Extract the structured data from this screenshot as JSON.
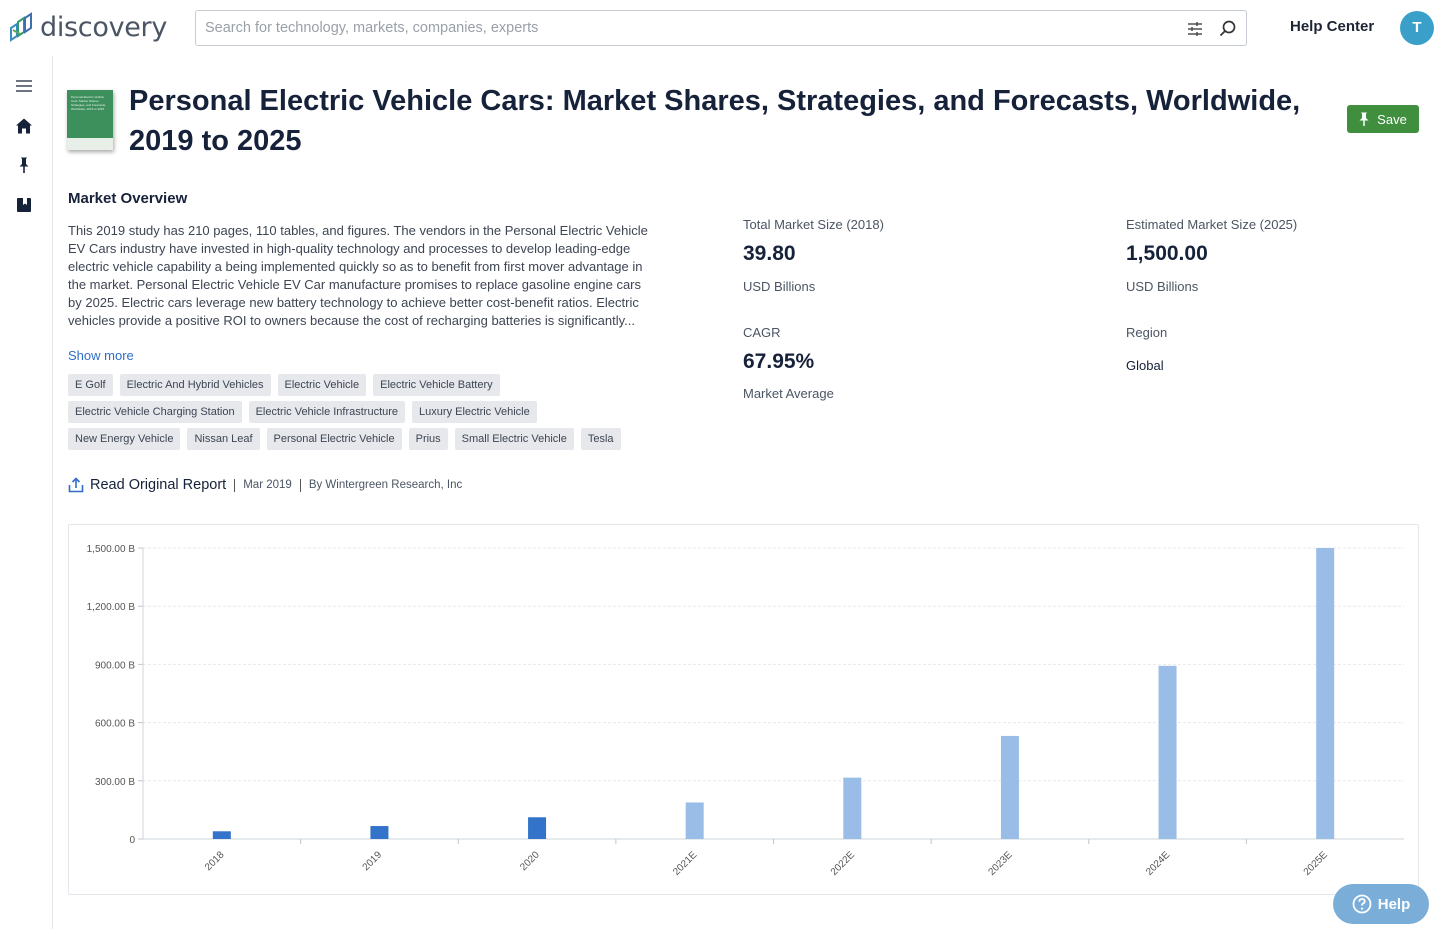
{
  "app": {
    "logo_text": "discovery",
    "search_placeholder": "Search for technology, markets, companies, experts",
    "help_center": "Help Center",
    "avatar_initial": "T"
  },
  "report": {
    "title": "Personal Electric Vehicle Cars: Market Shares, Strategies, and Forecasts, Worldwide, 2019 to 2025",
    "cover_text": "Personal Electric Vehicle Cars: Market Shares, Strategies, and Forecasts, Worldwide, 2019 to 2025",
    "save_label": "Save",
    "section_title": "Market Overview",
    "description": "This 2019 study has 210 pages, 110 tables, and figures. The vendors in the Personal Electric Vehicle EV Cars industry have invested in high-quality technology and processes to develop leading-edge electric vehicle capability a being implemented quickly so as to benefit from first mover advantage in the market. Personal Electric Vehicle EV Car manufacture promises to replace gasoline engine cars by 2025. Electric cars leverage new battery technology to achieve better cost-benefit ratios. Electric vehicles provide a positive ROI to owners because the cost of recharging batteries is significantly...",
    "show_more": "Show more",
    "tags": [
      [
        "E Golf",
        "Electric And Hybrid Vehicles",
        "Electric Vehicle",
        "Electric Vehicle Battery"
      ],
      [
        "Electric Vehicle Charging Station",
        "Electric Vehicle Infrastructure",
        "Luxury Electric Vehicle"
      ],
      [
        "New Energy Vehicle",
        "Nissan Leaf",
        "Personal Electric Vehicle",
        "Prius",
        "Small Electric Vehicle",
        "Tesla"
      ]
    ],
    "read_original": "Read Original Report",
    "date": "Mar 2019",
    "publisher": "By Wintergreen Research, Inc"
  },
  "stats": {
    "total_label": "Total Market Size (2018)",
    "total_value": "39.80",
    "total_unit": "USD Billions",
    "est_label": "Estimated Market Size (2025)",
    "est_value": "1,500.00",
    "est_unit": "USD Billions",
    "cagr_label": "CAGR",
    "cagr_value": "67.95%",
    "cagr_sub": "Market Average",
    "region_label": "Region",
    "region_value": "Global"
  },
  "help_label": "Help",
  "colors": {
    "actual_bar": "#3373c9",
    "estimate_bar": "#99bde6",
    "save": "#3f8f3f",
    "accent_link": "#2f6ec7"
  },
  "chart_data": {
    "type": "bar",
    "categories": [
      "2018",
      "2019",
      "2020",
      "2021E",
      "2022E",
      "2023E",
      "2024E",
      "2025E"
    ],
    "values": [
      39.8,
      66.8,
      112.1,
      188.3,
      316.3,
      531.3,
      892.6,
      1500
    ],
    "estimate": [
      false,
      false,
      false,
      true,
      true,
      true,
      true,
      true
    ],
    "ylim": [
      0,
      1500
    ],
    "yticks": [
      0,
      300,
      600,
      900,
      1200,
      1500
    ],
    "ytick_labels": [
      "0",
      "300.00 B",
      "600.00 B",
      "900.00 B",
      "1,200.00 B",
      "1,500.00 B"
    ],
    "grid": true
  }
}
